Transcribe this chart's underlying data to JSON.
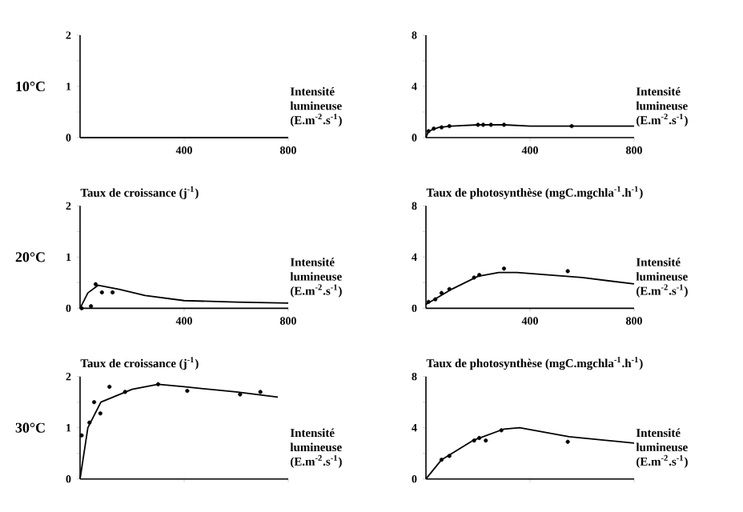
{
  "chart_data": [
    {
      "type": "line",
      "xlabel": "Intensité lumineuse (E.m$^{-2}$.s$^{-1}$)",
      "annotations": [
        "10°C"
      ],
      "xlim": [
        0,
        800
      ],
      "xticks": [
        400,
        800
      ],
      "ylim": [
        0,
        2
      ],
      "yticks": [
        0,
        {
          "value": 0.5,
          "label": null
        },
        1,
        {
          "value": 1.5,
          "label": null
        },
        2
      ],
      "series": [
        {
          "color": "#000000",
          "x": [
            0,
            800
          ],
          "values": [
            0,
            0
          ]
        }
      ]
    },
    {
      "type": "line",
      "xlabel": "Intensité lumineuse (E.m$^{-2}$.s$^{-1}$)",
      "xlim": [
        0,
        800
      ],
      "xticks": [
        400,
        800
      ],
      "ylim": [
        0,
        8
      ],
      "yticks": [
        0,
        {
          "value": 2,
          "label": null
        },
        4,
        {
          "value": 6,
          "label": null
        },
        8
      ],
      "series": [
        {
          "type": "scatter",
          "color": "#000000",
          "x": [
            10,
            30,
            60,
            90,
            200,
            220,
            250,
            300,
            560
          ],
          "values": [
            0.5,
            0.7,
            0.8,
            0.9,
            1.0,
            1.0,
            1.0,
            1.0,
            0.9
          ]
        },
        {
          "color": "#000000",
          "x": [
            0,
            10,
            50,
            100,
            200,
            300,
            400,
            600,
            800
          ],
          "values": [
            0,
            0.5,
            0.8,
            0.9,
            1.0,
            1.0,
            0.9,
            0.9,
            0.9
          ]
        }
      ]
    },
    {
      "type": "line",
      "ylabel": "Taux de croissance (j$^{-1}$)",
      "xlabel": "Intensité lumineuse (E.m$^{-2}$.s$^{-1}$)",
      "annotations": [
        "20°C"
      ],
      "xlim": [
        0,
        800
      ],
      "xticks": [
        400,
        800
      ],
      "ylim": [
        0,
        2
      ],
      "yticks": [
        0,
        {
          "value": 0.5,
          "label": null
        },
        1,
        {
          "value": 1.5,
          "label": null
        },
        2
      ],
      "series": [
        {
          "type": "scatter",
          "color": "#000000",
          "x": [
            6,
            42,
            60,
            84,
            125
          ],
          "values": [
            0,
            0.04,
            0.47,
            0.31,
            0.31
          ]
        },
        {
          "color": "#000000",
          "x": [
            0,
            30,
            70,
            150,
            250,
            400,
            600,
            800
          ],
          "values": [
            0,
            0.3,
            0.45,
            0.37,
            0.25,
            0.15,
            0.12,
            0.1
          ]
        }
      ]
    },
    {
      "type": "line",
      "ylabel": "Taux de photosynthèse (mgC.mgchla$^{-1}$.h$^{-1}$)",
      "xlabel": "Intensité lumineuse (E.m$^{-2}$.s$^{-1}$)",
      "xlim": [
        0,
        800
      ],
      "xticks": [
        400,
        800
      ],
      "ylim": [
        0,
        8
      ],
      "yticks": [
        0,
        {
          "value": 2,
          "label": null
        },
        4,
        {
          "value": 6,
          "label": null
        },
        8
      ],
      "series": [
        {
          "type": "scatter",
          "color": "#000000",
          "x": [
            10,
            36,
            60,
            90,
            185,
            205,
            300,
            545
          ],
          "values": [
            0.5,
            0.7,
            1.2,
            1.5,
            2.4,
            2.6,
            3.1,
            2.9
          ]
        },
        {
          "color": "#000000",
          "x": [
            0,
            50,
            100,
            200,
            280,
            350,
            600,
            800
          ],
          "values": [
            0.3,
            0.9,
            1.5,
            2.5,
            2.8,
            2.8,
            2.4,
            1.9
          ]
        }
      ]
    },
    {
      "type": "line",
      "ylabel": "Taux de croissance (j$^{-1}$)",
      "xlabel": "Intensité lumineuse (E.m$^{-2}$.s$^{-1}$)",
      "annotations": [
        "30°C"
      ],
      "xlim": [
        0,
        800
      ],
      "xticks": [
        400,
        800
      ],
      "ylim": [
        0,
        2
      ],
      "yticks": [
        0,
        {
          "value": 0.5,
          "label": null
        },
        1,
        {
          "value": 1.5,
          "label": null
        },
        2
      ],
      "tick_labels": "y",
      "series": [
        {
          "type": "scatter",
          "color": "#000000",
          "x": [
            6,
            36,
            54,
            78,
            113,
            173,
            300,
            412,
            615,
            693
          ],
          "values": [
            0.85,
            1.1,
            1.5,
            1.28,
            1.8,
            1.7,
            1.85,
            1.72,
            1.65,
            1.7
          ]
        },
        {
          "color": "#000000",
          "x": [
            0,
            30,
            80,
            200,
            300,
            400,
            600,
            760
          ],
          "values": [
            0,
            1.0,
            1.5,
            1.75,
            1.85,
            1.8,
            1.7,
            1.6
          ]
        }
      ]
    },
    {
      "type": "line",
      "ylabel": "Taux de photosynthèse (mgC.mgchla$^{-1}$.h$^{-1}$)",
      "xlabel": "Intensité lumineuse (E.m$^{-2}$.s$^{-1}$)",
      "xlim": [
        0,
        800
      ],
      "xticks": [
        400,
        800
      ],
      "ylim": [
        0,
        8
      ],
      "yticks": [
        0,
        {
          "value": 2,
          "label": null
        },
        4,
        {
          "value": 6,
          "label": null
        },
        8
      ],
      "tick_labels": "y",
      "series": [
        {
          "type": "scatter",
          "color": "#000000",
          "x": [
            60,
            90,
            185,
            205,
            230,
            290,
            545
          ],
          "values": [
            1.5,
            1.8,
            3.0,
            3.2,
            3.0,
            3.8,
            2.9
          ]
        },
        {
          "color": "#000000",
          "x": [
            0,
            60,
            180,
            300,
            360,
            550,
            800
          ],
          "values": [
            0,
            1.5,
            3.0,
            3.9,
            4.0,
            3.3,
            2.8
          ]
        }
      ]
    }
  ]
}
